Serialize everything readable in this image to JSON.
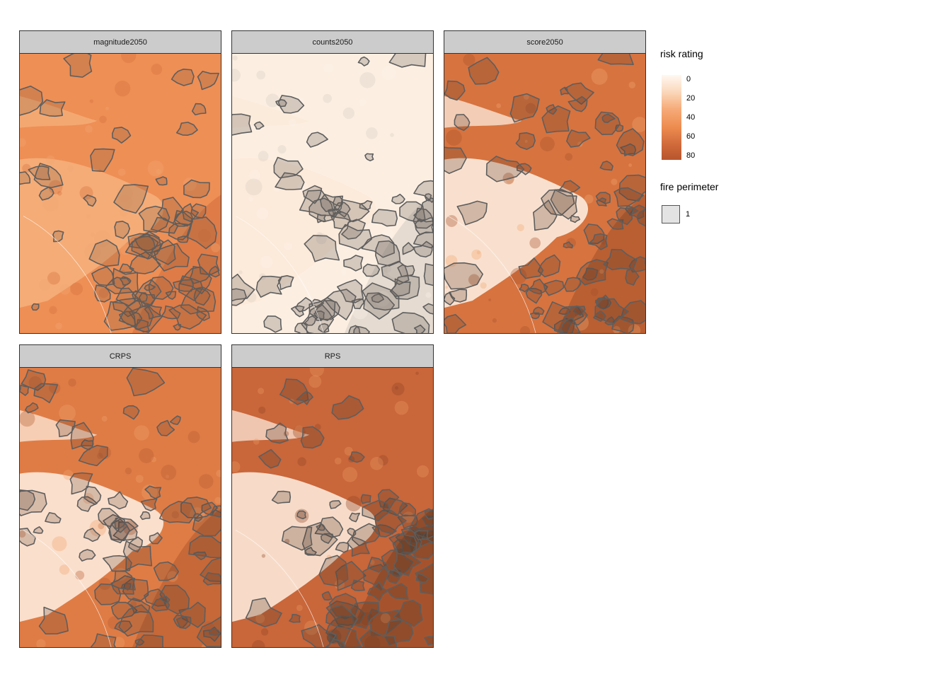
{
  "panels": [
    {
      "id": "magnitude2050",
      "label": "magnitude2050",
      "scheme": "magnitude"
    },
    {
      "id": "counts2050",
      "label": "counts2050",
      "scheme": "counts"
    },
    {
      "id": "score2050",
      "label": "score2050",
      "scheme": "score"
    },
    {
      "id": "CRPS",
      "label": "CRPS",
      "scheme": "crps"
    },
    {
      "id": "RPS",
      "label": "RPS",
      "scheme": "rps"
    }
  ],
  "legend": {
    "risk_title": "risk rating",
    "risk_ticks": [
      "0",
      "20",
      "40",
      "60",
      "80"
    ],
    "fire_title": "fire perimeter",
    "fire_key_label": "1"
  },
  "colors": {
    "low": "#fff8f1",
    "mid": "#ed8b4f",
    "high": "#b8552c",
    "perimeter": "#5e5e5e"
  }
}
